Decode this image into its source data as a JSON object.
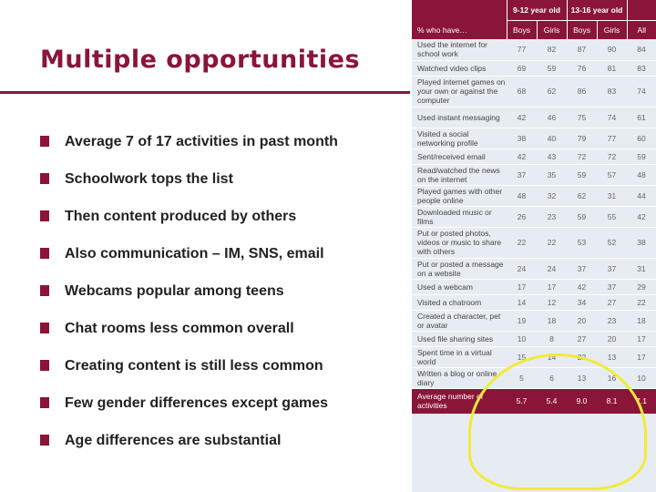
{
  "slide": {
    "title": "Multiple opportunities",
    "bullets": [
      "Average 7 of 17 activities in past month",
      "Schoolwork tops the list",
      "Then content produced by others",
      "Also communication – IM, SNS, email",
      "Webcams popular among teens",
      "Chat rooms less common overall",
      "Creating content is still less common",
      "Few gender differences except games",
      "Age differences are substantial"
    ]
  },
  "table": {
    "row_header": "% who have…",
    "age_groups": [
      "9-12 year old",
      "13-16 year old"
    ],
    "columns": [
      "Boys",
      "Girls",
      "Boys",
      "Girls",
      "All"
    ],
    "rows": [
      {
        "label": "Used the internet for school work",
        "values": [
          "77",
          "82",
          "87",
          "90",
          "84"
        ]
      },
      {
        "label": "Watched video clips",
        "values": [
          "69",
          "59",
          "76",
          "81",
          "83"
        ]
      },
      {
        "label": "Played internet games on your own or against the computer",
        "values": [
          "68",
          "62",
          "86",
          "83",
          "74"
        ]
      },
      {
        "label": "Used instant messaging",
        "values": [
          "42",
          "46",
          "75",
          "74",
          "61"
        ]
      },
      {
        "label": "Visited a social networking profile",
        "values": [
          "38",
          "40",
          "79",
          "77",
          "60"
        ]
      },
      {
        "label": "Sent/received email",
        "values": [
          "42",
          "43",
          "72",
          "72",
          "59"
        ]
      },
      {
        "label": "Read/watched the news on the internet",
        "values": [
          "37",
          "35",
          "59",
          "57",
          "48"
        ]
      },
      {
        "label": "Played games with other people online",
        "values": [
          "48",
          "32",
          "62",
          "31",
          "44"
        ]
      },
      {
        "label": "Downloaded music or films",
        "values": [
          "26",
          "23",
          "59",
          "55",
          "42"
        ]
      },
      {
        "label": "Put or posted photos, videos or music to share with others",
        "values": [
          "22",
          "22",
          "53",
          "52",
          "38"
        ]
      },
      {
        "label": "Put or posted a message on a website",
        "values": [
          "24",
          "24",
          "37",
          "37",
          "31"
        ]
      },
      {
        "label": "Used a webcam",
        "values": [
          "17",
          "17",
          "42",
          "37",
          "29"
        ]
      },
      {
        "label": "Visited a chatroom",
        "values": [
          "14",
          "12",
          "34",
          "27",
          "22"
        ]
      },
      {
        "label": "Created a character, pet or avatar",
        "values": [
          "19",
          "18",
          "20",
          "23",
          "18"
        ]
      },
      {
        "label": "Used file sharing sites",
        "values": [
          "10",
          "8",
          "27",
          "20",
          "17"
        ]
      },
      {
        "label": "Spent time in a virtual world",
        "values": [
          "15",
          "14",
          "22",
          "13",
          "17"
        ]
      },
      {
        "label": "Written a blog or online diary",
        "values": [
          "5",
          "6",
          "13",
          "16",
          "10"
        ]
      }
    ],
    "footer": {
      "label": "Average number of activities",
      "values": [
        "5.7",
        "5.4",
        "9.0",
        "8.1",
        "7.1"
      ]
    }
  },
  "colors": {
    "accent": "#8a1538",
    "table_bg": "#e6ecf2",
    "highlight": "#f2ea38"
  }
}
